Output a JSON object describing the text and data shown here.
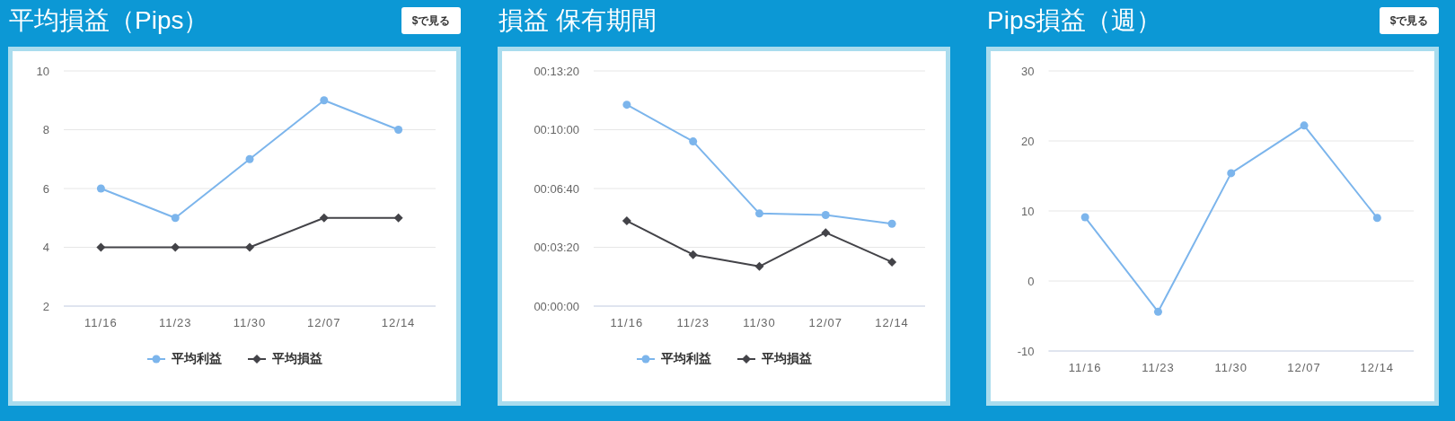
{
  "chart_data": [
    {
      "type": "line",
      "title": "平均損益（Pips）",
      "annotations": [
        "$で見る"
      ],
      "categories": [
        "11/16",
        "11/23",
        "11/30",
        "12/07",
        "12/14"
      ],
      "series": [
        {
          "name": "平均利益",
          "color": "#7cb5ec",
          "marker": "circle",
          "values": [
            6,
            5,
            7,
            9,
            8
          ]
        },
        {
          "name": "平均損益",
          "color": "#434348",
          "marker": "diamond",
          "values": [
            4,
            4,
            4,
            5,
            5
          ]
        }
      ],
      "ylim": [
        2,
        10
      ],
      "yticks": [
        2,
        4,
        6,
        8,
        10
      ],
      "grid": "y",
      "legend": "bottom"
    },
    {
      "type": "line",
      "title": "損益 保有期間",
      "categories": [
        "11/16",
        "11/23",
        "11/30",
        "12/07",
        "12/14"
      ],
      "series": [
        {
          "name": "平均利益",
          "color": "#7cb5ec",
          "marker": "circle",
          "values": [
            685,
            560,
            315,
            310,
            280
          ]
        },
        {
          "name": "平均損益",
          "color": "#434348",
          "marker": "diamond",
          "values": [
            290,
            175,
            135,
            250,
            150
          ]
        }
      ],
      "ylim": [
        0,
        800
      ],
      "yticks": [
        {
          "value": 0,
          "label": "00:00:00"
        },
        {
          "value": 200,
          "label": "00:03:20"
        },
        {
          "value": 400,
          "label": "00:06:40"
        },
        {
          "value": 600,
          "label": "00:10:00"
        },
        {
          "value": 800,
          "label": "00:13:20"
        }
      ],
      "grid": "y",
      "legend": "bottom"
    },
    {
      "type": "line",
      "title": "Pips損益（週）",
      "annotations": [
        "$で見る"
      ],
      "categories": [
        "11/16",
        "11/23",
        "11/30",
        "12/07",
        "12/14"
      ],
      "series": [
        {
          "color": "#7cb5ec",
          "marker": "circle",
          "values": [
            9.1,
            -4.4,
            15.4,
            22.2,
            9.0
          ]
        }
      ],
      "ylim": [
        -10,
        30
      ],
      "yticks": [
        -10,
        0,
        10,
        20,
        30
      ],
      "grid": "y"
    }
  ]
}
